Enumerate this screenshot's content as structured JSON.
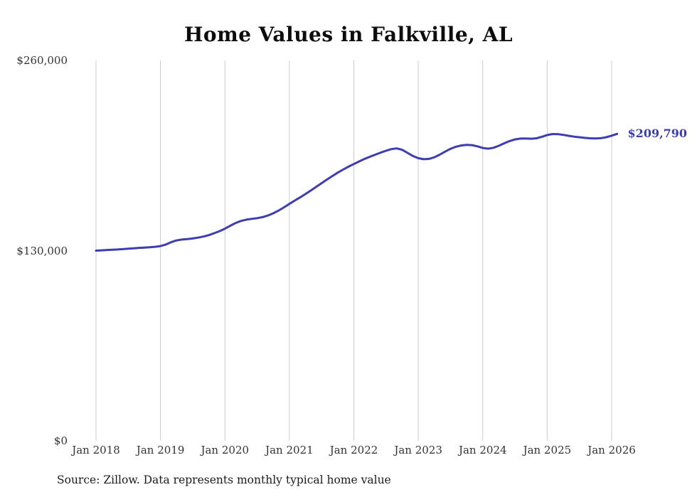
{
  "title": "Home Values in Falkville, AL",
  "source_note": "Source: Zillow. Data represents monthly typical home value",
  "end_label": "$209,790",
  "colors": {
    "line": "#3d3daf",
    "end_label": "#3d3daf",
    "grid": "#cccccc",
    "axis_text": "#333333",
    "title_text": "#0d0d0d"
  },
  "y_axis": {
    "ticks": [
      {
        "label": "$0",
        "value": 0
      },
      {
        "label": "$130,000",
        "value": 130000
      },
      {
        "label": "$260,000",
        "value": 260000
      }
    ]
  },
  "x_axis": {
    "labels": [
      "Jan 2018",
      "Jan 2019",
      "Jan 2020",
      "Jan 2021",
      "Jan 2022",
      "Jan 2023",
      "Jan 2024",
      "Jan 2025",
      "Jan 2026"
    ]
  },
  "chart_data": {
    "type": "line",
    "title": "Home Values in Falkville, AL",
    "series_name": "Typical home value",
    "unit": "USD",
    "frequency": "monthly",
    "x_start": "2018-01",
    "x_end": "2026-02",
    "ylim": [
      0,
      260000
    ],
    "grid": "vertical-only",
    "legend": "none",
    "final_value": 209790,
    "values": [
      130000,
      130200,
      130450,
      130650,
      130800,
      131000,
      131300,
      131600,
      131900,
      132100,
      132300,
      132600,
      133100,
      134200,
      135800,
      137000,
      137600,
      137900,
      138300,
      138900,
      139600,
      140600,
      141900,
      143300,
      145000,
      147000,
      148900,
      150300,
      151200,
      151700,
      152200,
      152900,
      154000,
      155500,
      157400,
      159600,
      162000,
      164200,
      166400,
      168700,
      171100,
      173600,
      176100,
      178600,
      181000,
      183300,
      185400,
      187400,
      189200,
      191000,
      192700,
      194200,
      195600,
      197000,
      198300,
      199400,
      199900,
      198900,
      196800,
      194700,
      193200,
      192500,
      192700,
      193800,
      195600,
      197700,
      199600,
      201000,
      201900,
      202300,
      202100,
      201300,
      200200,
      199700,
      200300,
      201700,
      203400,
      204900,
      206000,
      206600,
      206700,
      206500,
      206800,
      207800,
      209000,
      209700,
      209600,
      209100,
      208500,
      207900,
      207500,
      207100,
      206800,
      206700,
      206900,
      207500,
      208600,
      209790
    ]
  }
}
